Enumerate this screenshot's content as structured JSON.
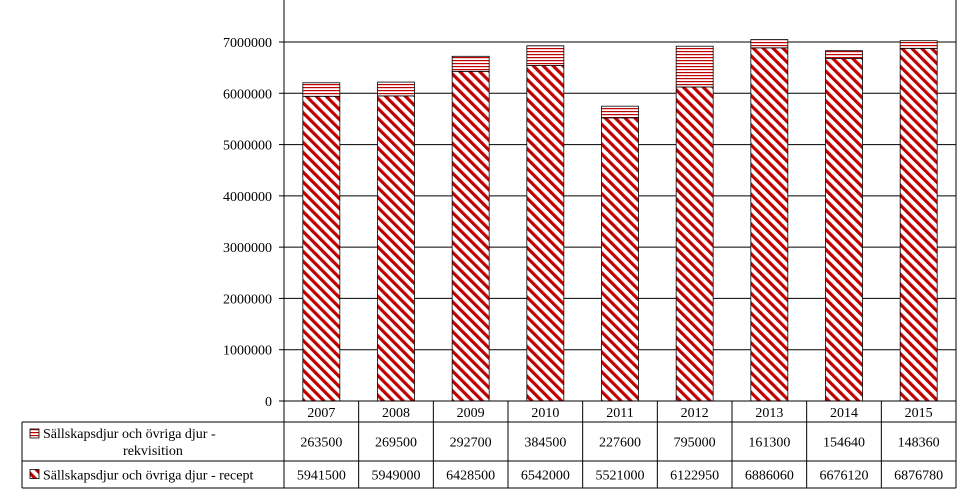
{
  "chart_data": {
    "type": "bar",
    "stacked": true,
    "categories": [
      "2007",
      "2008",
      "2009",
      "2010",
      "2011",
      "2012",
      "2013",
      "2014",
      "2015"
    ],
    "series": [
      {
        "name": "Sällskapsdjur och övriga djur - recept",
        "values": [
          5941500,
          5949000,
          6428500,
          6542000,
          5521000,
          6122950,
          6886060,
          6676120,
          6876780
        ],
        "color": "#c00000",
        "pattern": "diagonal-stripes"
      },
      {
        "name": "Sällskapsdjur och övriga djur - rekvisition",
        "values": [
          263500,
          269500,
          292700,
          384500,
          227600,
          795000,
          161300,
          154640,
          148360
        ],
        "color": "#c00000",
        "pattern": "horizontal-stripes"
      }
    ],
    "ylim": [
      0,
      7000000
    ],
    "yticks": [
      "0",
      "1000000",
      "2000000",
      "3000000",
      "4000000",
      "5000000",
      "6000000",
      "7000000"
    ],
    "grid": true,
    "data_table": true
  }
}
